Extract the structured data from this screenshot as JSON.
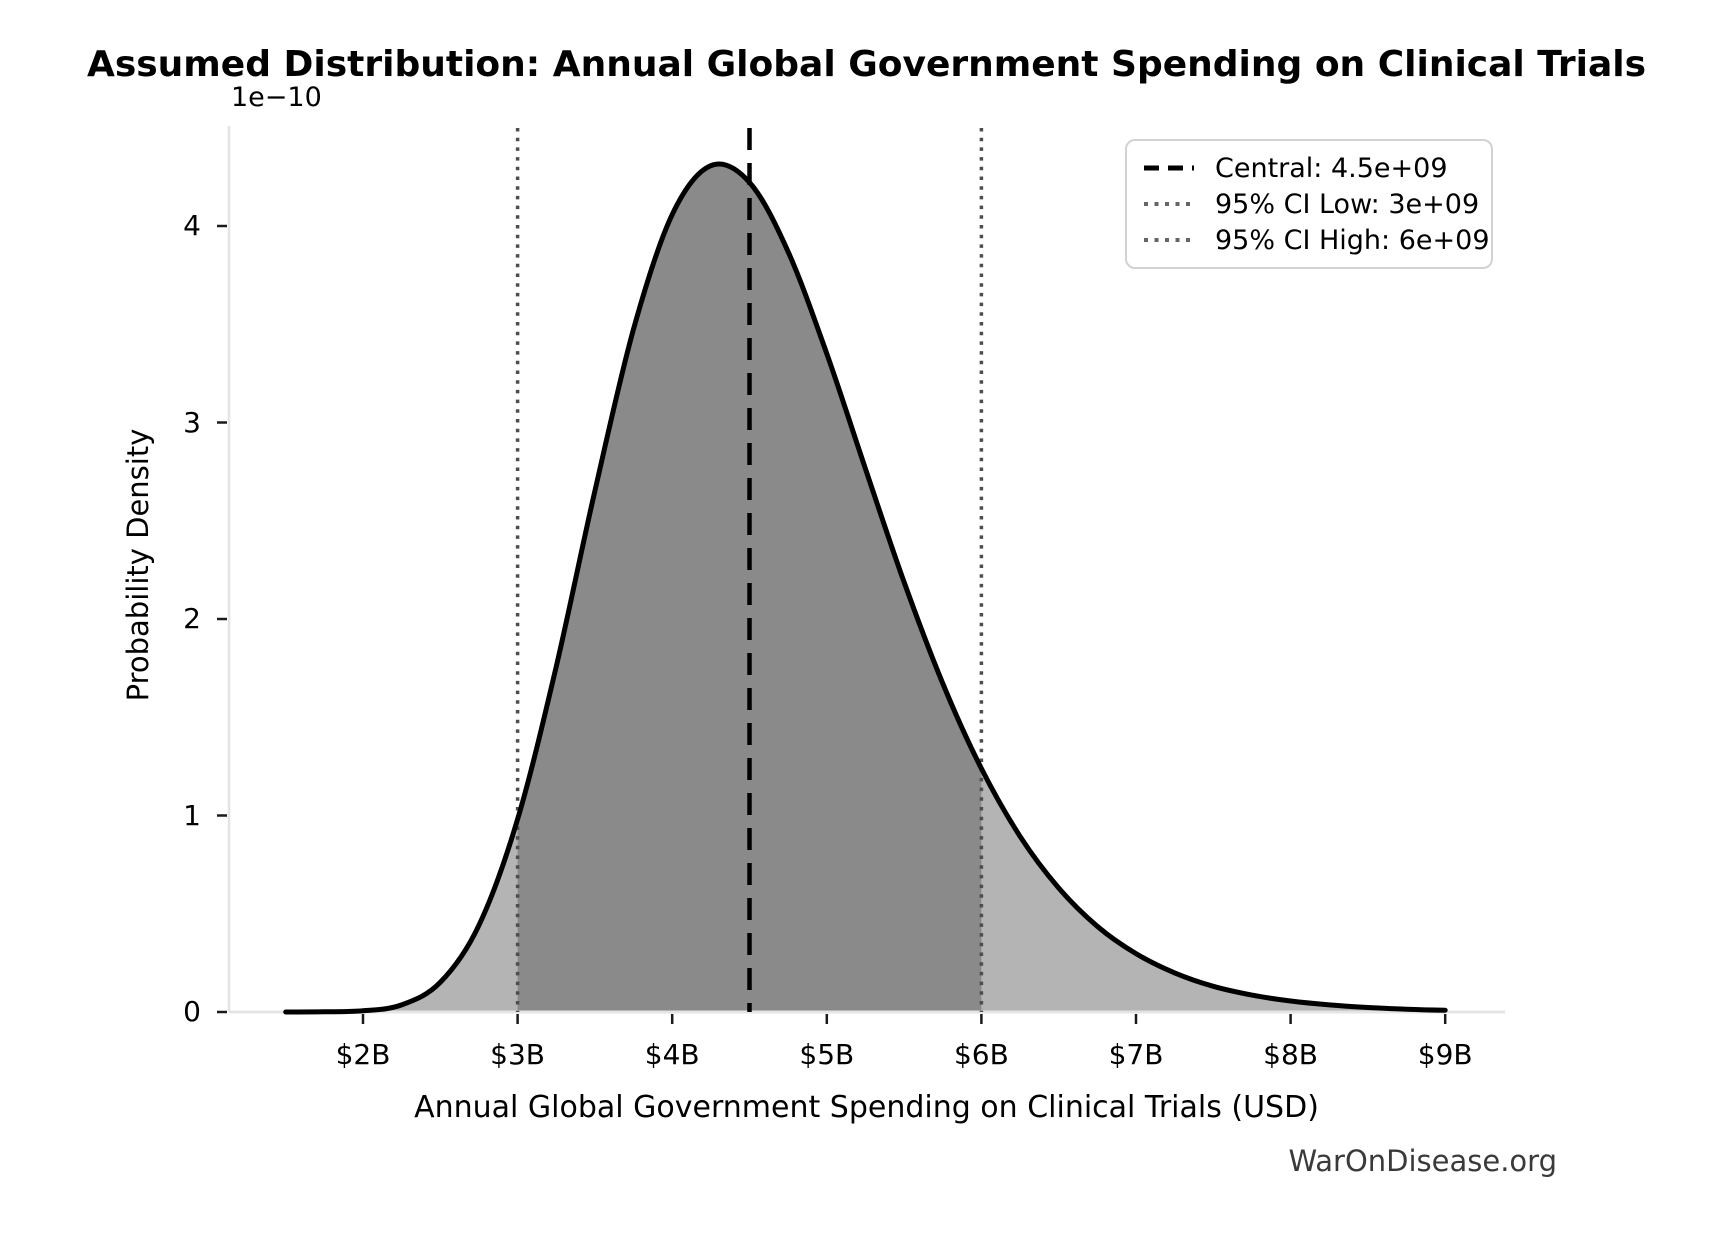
{
  "title": "Assumed Distribution: Annual Global Government Spending on Clinical Trials",
  "watermark": "WarOnDisease.org",
  "axes": {
    "x_label": "Annual Global Government Spending on Clinical Trials (USD)",
    "y_label": "Probability Density",
    "y_offset_text": "1e−10",
    "x_ticks": [
      "$2B",
      "$3B",
      "$4B",
      "$5B",
      "$6B",
      "$7B",
      "$8B",
      "$9B"
    ],
    "y_ticks": [
      "0",
      "1",
      "2",
      "3",
      "4"
    ]
  },
  "legend": {
    "entries": [
      {
        "label": "Central: 4.5e+09",
        "style": "dashed",
        "color": "#000000"
      },
      {
        "label": "95% CI Low: 3e+09",
        "style": "dotted",
        "color": "#666666"
      },
      {
        "label": "95% CI High: 6e+09",
        "style": "dotted",
        "color": "#666666"
      }
    ]
  },
  "chart_data": {
    "type": "area",
    "title": "Assumed Distribution: Annual Global Government Spending on Clinical Trials",
    "xlabel": "Annual Global Government Spending on Clinical Trials (USD)",
    "ylabel": "Probability Density",
    "y_scale_factor": "1e-10",
    "x_unit": "billions USD",
    "distribution": "lognormal-like, median 4.5e9, mode ~4.3e9",
    "x": [
      1.5,
      1.75,
      2,
      2.25,
      2.5,
      2.75,
      3,
      3.25,
      3.5,
      3.75,
      4,
      4.25,
      4.5,
      4.75,
      5,
      5.25,
      5.5,
      5.75,
      6,
      6.25,
      6.5,
      6.75,
      7,
      7.25,
      7.5,
      7.75,
      8,
      8.25,
      8.5,
      8.75,
      9
    ],
    "y_density_1e10": [
      0,
      0.001,
      0.006,
      0.036,
      0.151,
      0.441,
      0.981,
      1.759,
      2.652,
      3.475,
      4.058,
      4.307,
      4.222,
      3.869,
      3.35,
      2.764,
      2.188,
      1.672,
      1.239,
      0.894,
      0.631,
      0.436,
      0.297,
      0.199,
      0.131,
      0.086,
      0.056,
      0.036,
      0.023,
      0.014,
      0.009
    ],
    "central_billions": 4.5,
    "ci_low_billions": 3,
    "ci_high_billions": 6,
    "central": 4500000000.0,
    "ci_low": 3000000000.0,
    "ci_high": 6000000000.0,
    "xlim_billions": [
      1.125,
      9.375
    ],
    "ylim_1e10": [
      0,
      4.5
    ],
    "x_tick_values": [
      2,
      3,
      4,
      5,
      6,
      7,
      8,
      9
    ],
    "y_tick_values": [
      0,
      1,
      2,
      3,
      4
    ],
    "grid": false,
    "legend_position": "upper right",
    "colors": {
      "curve": "#000000",
      "fill_light": "#b4b4b4",
      "fill_ci": "#8a8a8a",
      "central_line": "#000000",
      "ci_line": "#4d4d4d",
      "spine": "#e4e4e4",
      "tick_mark": "#1a1a1a"
    }
  }
}
